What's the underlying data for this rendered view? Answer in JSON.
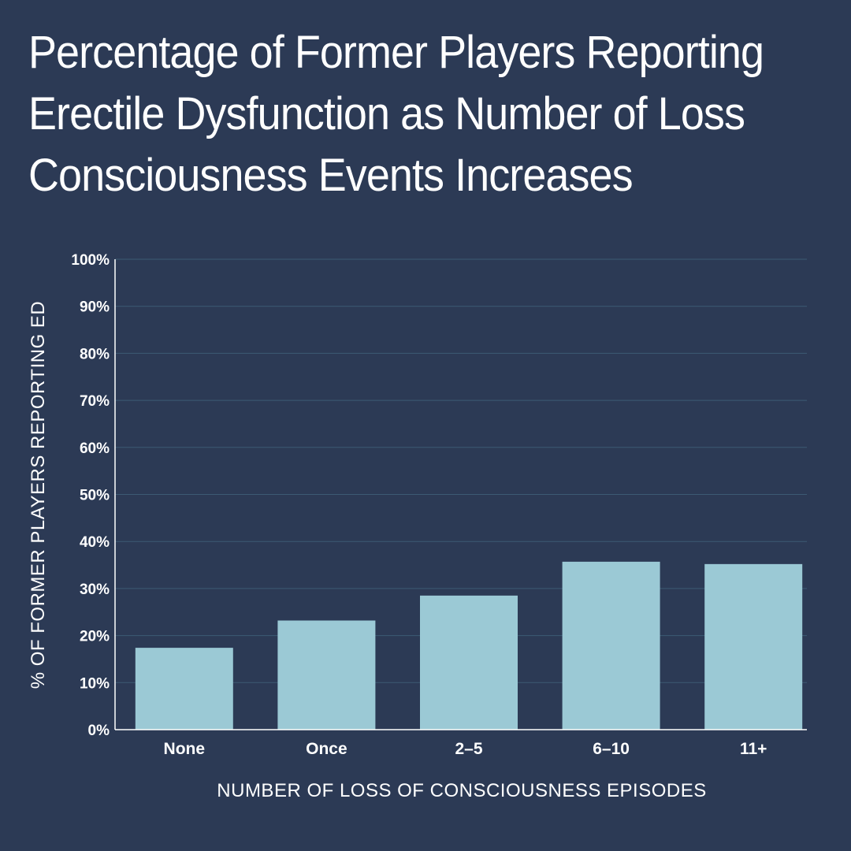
{
  "chart_data": {
    "type": "bar",
    "title_lines": [
      "Percentage of Former Players Reporting",
      "Erectile Dysfunction as Number of Loss",
      "Consciousness Events Increases"
    ],
    "xlabel": "NUMBER OF LOSS OF CONSCIOUSNESS EPISODES",
    "ylabel": "% OF FORMER PLAYERS REPORTING ED",
    "categories": [
      "None",
      "Once",
      "2–5",
      "6–10",
      "11+"
    ],
    "values": [
      17.4,
      23.2,
      28.5,
      35.7,
      35.2
    ],
    "ylim": [
      0,
      100
    ],
    "yticks": [
      "0%",
      "10%",
      "20%",
      "30%",
      "40%",
      "50%",
      "60%",
      "70%",
      "80%",
      "90%",
      "100%"
    ],
    "grid": true,
    "colors": {
      "background": "#2c3a55",
      "bar": "#9bc9d5",
      "grid": "#3d5a74",
      "axis": "#ffffff"
    }
  }
}
